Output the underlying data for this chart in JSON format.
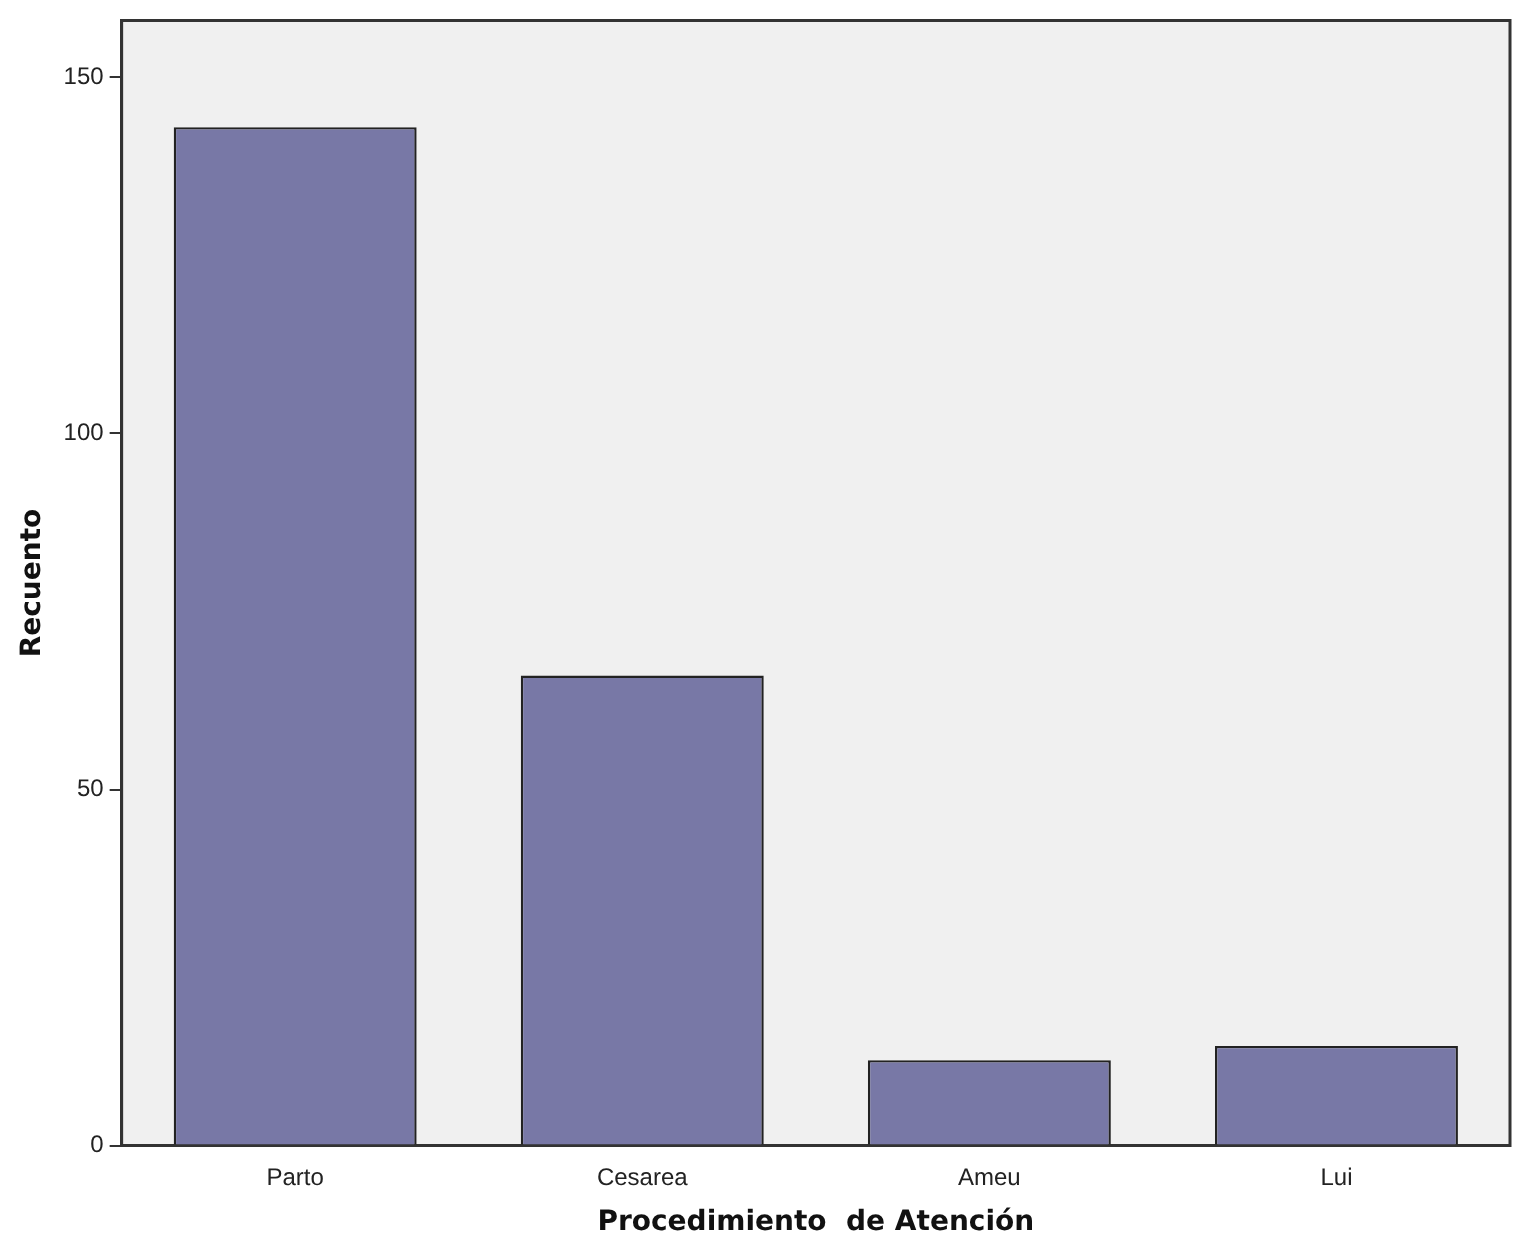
{
  "chart_data": {
    "type": "bar",
    "xlabel": "Procedimiento  de Atención",
    "ylabel": "Recuento",
    "categories": [
      "Parto",
      "Cesarea",
      "Ameu",
      "Lui"
    ],
    "values": [
      143,
      66,
      12,
      14
    ],
    "color": "#7878a6",
    "ylim": [
      0,
      158
    ],
    "yticks": [
      0,
      50,
      100,
      150
    ],
    "grid": false,
    "legend": false
  }
}
